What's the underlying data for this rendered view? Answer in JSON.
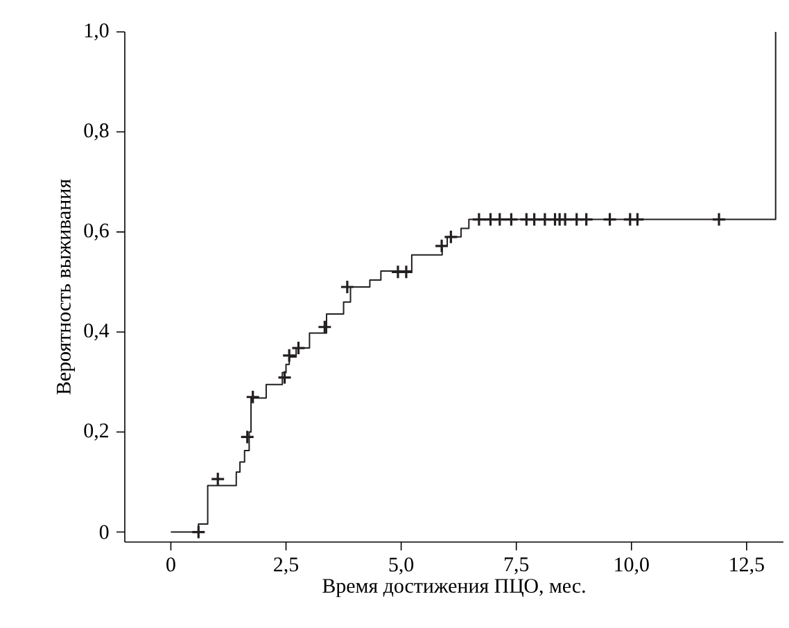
{
  "chart_data": {
    "type": "step",
    "xlabel": "Время достижения ПЦО, мес.",
    "ylabel": "Вероятность выживания",
    "xlim": [
      -1,
      13.3
    ],
    "ylim": [
      -0.02,
      1.0
    ],
    "xticks": [
      0,
      {
        "value": 2.5,
        "label": "2,5"
      },
      {
        "value": 5,
        "label": "5,0"
      },
      {
        "value": 7.5,
        "label": "7,5"
      },
      {
        "value": 10,
        "label": "10,0"
      },
      {
        "value": 12.5,
        "label": "12,5"
      }
    ],
    "yticks": [
      0,
      {
        "value": 0.2,
        "label": "0,2"
      },
      {
        "value": 0.4,
        "label": "0,4"
      },
      {
        "value": 0.6,
        "label": "0,6"
      },
      {
        "value": 0.8,
        "label": "0,8"
      },
      {
        "value": 1,
        "label": "1,0"
      }
    ],
    "series": [
      {
        "color": "#231f20",
        "x": [
          0,
          0.6,
          0.8,
          1.42,
          1.5,
          1.6,
          1.7,
          1.74,
          2.07,
          2.42,
          2.5,
          2.57,
          2.72,
          3.01,
          3.38,
          3.75,
          3.9,
          4.32,
          4.56,
          5.23,
          5.89,
          6.0,
          6.3,
          6.47,
          13.13
        ],
        "values": [
          0,
          0.016,
          0.093,
          0.12,
          0.14,
          0.163,
          0.2,
          0.268,
          0.295,
          0.319,
          0.335,
          0.35,
          0.368,
          0.398,
          0.436,
          0.46,
          0.49,
          0.504,
          0.522,
          0.554,
          0.572,
          0.59,
          0.607,
          0.625,
          1.0
        ]
      },
      {
        "type": "scatter",
        "marker": "cross",
        "color": "#231f20",
        "x": [
          0.6,
          1.02,
          1.66,
          1.78,
          2.47,
          2.57,
          2.77,
          3.34,
          3.83,
          4.93,
          5.11,
          5.88,
          6.08,
          6.69,
          6.94,
          7.14,
          7.39,
          7.72,
          7.89,
          8.12,
          8.34,
          8.44,
          8.56,
          8.81,
          9.02,
          9.53,
          9.97,
          10.13,
          11.9
        ],
        "values": [
          0,
          0.106,
          0.19,
          0.27,
          0.309,
          0.353,
          0.368,
          0.41,
          0.49,
          0.52,
          0.52,
          0.572,
          0.59,
          0.625,
          0.625,
          0.625,
          0.625,
          0.625,
          0.625,
          0.625,
          0.625,
          0.625,
          0.625,
          0.625,
          0.625,
          0.625,
          0.625,
          0.625,
          0.625
        ]
      }
    ]
  }
}
